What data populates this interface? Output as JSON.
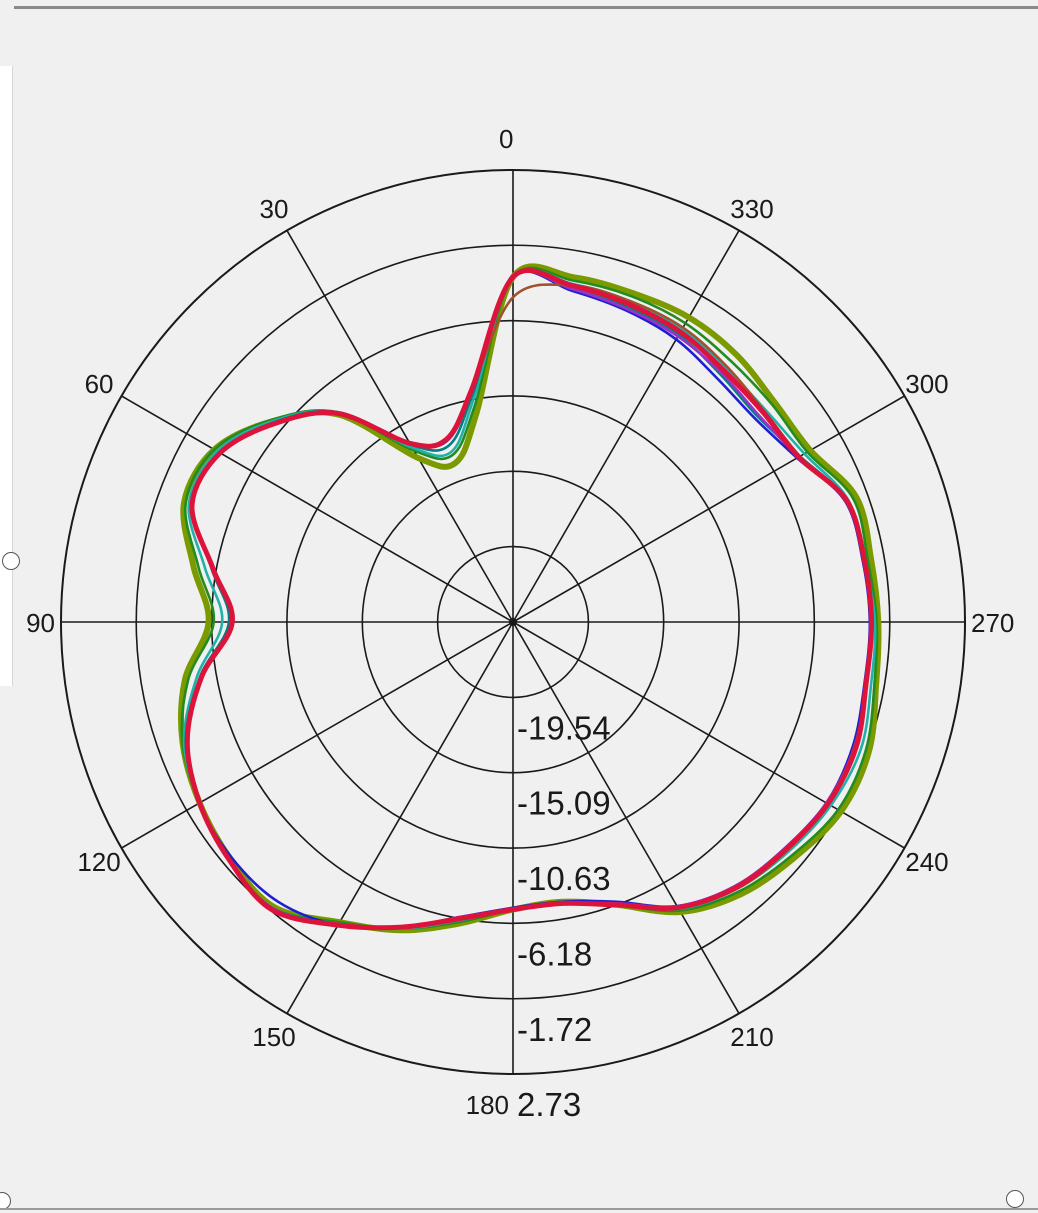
{
  "chart_data": {
    "type": "polar-line",
    "angle_labels": [
      "0",
      "30",
      "60",
      "90",
      "120",
      "150",
      "180",
      "210",
      "240",
      "270",
      "300",
      "330"
    ],
    "angle_direction": "counterclockwise",
    "zero_location": "top",
    "radial_ticks": [
      "-19.54",
      "-15.09",
      "-10.63",
      "-6.18",
      "-1.72",
      "2.73"
    ],
    "radial_range": [
      -24,
      2.73
    ],
    "grid": true,
    "angles": [
      0,
      10,
      20,
      30,
      40,
      50,
      60,
      70,
      80,
      90,
      100,
      110,
      120,
      130,
      140,
      150,
      160,
      170,
      180,
      190,
      200,
      210,
      220,
      230,
      240,
      250,
      260,
      270,
      280,
      290,
      300,
      310,
      320,
      330,
      340,
      350
    ],
    "series": [
      {
        "color": "#7a9a00",
        "values": [
          -3.6,
          -11.5,
          -14,
          -12.8,
          -8,
          -5.5,
          -3.6,
          -3.3,
          -4.8,
          -6.0,
          -4.3,
          -3.2,
          -2.6,
          -2.2,
          -2.0,
          -3.5,
          -4.6,
          -5.9,
          -7.0,
          -7.2,
          -6.2,
          -4.2,
          -3.0,
          -2.3,
          -1.6,
          -1.6,
          -2.2,
          -2.4,
          -2.5,
          -2.4,
          -3.7,
          -3.8,
          -3.4,
          -3.2,
          -3.3,
          -3.3
        ]
      },
      {
        "color": "#228b22",
        "values": [
          -3.6,
          -11,
          -13.5,
          -12.3,
          -7.8,
          -5.4,
          -3.6,
          -3.4,
          -5.1,
          -6.3,
          -4.5,
          -3.2,
          -2.6,
          -2.1,
          -1.9,
          -3.5,
          -4.7,
          -6.0,
          -7.0,
          -7.2,
          -6.2,
          -4.3,
          -3.2,
          -2.5,
          -1.8,
          -1.8,
          -2.3,
          -2.5,
          -2.7,
          -2.6,
          -3.9,
          -4.0,
          -3.9,
          -3.6,
          -3.5,
          -3.5
        ]
      },
      {
        "color": "#20b2aa",
        "values": [
          -3.6,
          -10.6,
          -13.3,
          -12.1,
          -7.8,
          -5.5,
          -3.8,
          -3.6,
          -5.5,
          -6.8,
          -5.0,
          -3.3,
          -2.6,
          -2.1,
          -1.9,
          -3.4,
          -4.7,
          -6.1,
          -7.0,
          -7.2,
          -6.2,
          -4.4,
          -3.4,
          -2.8,
          -2.3,
          -2.1,
          -2.5,
          -2.6,
          -2.9,
          -2.9,
          -4.1,
          -4.5,
          -4.4,
          -4.0,
          -3.8,
          -3.7
        ]
      },
      {
        "color": "#008080",
        "values": [
          -3.6,
          -10.3,
          -12.9,
          -11.9,
          -7.8,
          -5.6,
          -4.0,
          -3.8,
          -5.9,
          -7.2,
          -5.2,
          -3.4,
          -2.6,
          -2.1,
          -1.9,
          -3.4,
          -4.8,
          -6.2,
          -7.1,
          -7.2,
          -6.3,
          -4.5,
          -3.6,
          -3.0,
          -2.5,
          -2.4,
          -2.8,
          -2.8,
          -3.0,
          -3.0,
          -4.4,
          -5.1,
          -4.9,
          -4.4,
          -4.2,
          -4.0
        ]
      },
      {
        "color": "#1f1fd0",
        "values": [
          -3.6,
          -10.1,
          -12.6,
          -11.8,
          -7.9,
          -5.7,
          -4.0,
          -3.8,
          -6.0,
          -7.4,
          -5.3,
          -3.5,
          -2.6,
          -2.3,
          -2.4,
          -3.3,
          -4.8,
          -6.3,
          -7.1,
          -7.2,
          -6.4,
          -4.6,
          -3.6,
          -3.1,
          -2.6,
          -2.6,
          -2.9,
          -2.9,
          -3.0,
          -3.1,
          -4.6,
          -5.3,
          -5.2,
          -4.7,
          -4.4,
          -4.1
        ]
      },
      {
        "color": "#9932cc",
        "values": [
          -3.6,
          -10.0,
          -12.5,
          -11.8,
          -7.9,
          -5.7,
          -4.0,
          -3.8,
          -6.0,
          -7.4,
          -5.3,
          -3.5,
          -2.6,
          -2.1,
          -1.9,
          -3.3,
          -4.8,
          -6.3,
          -7.0,
          -7.1,
          -6.3,
          -4.6,
          -3.6,
          -3.1,
          -2.6,
          -2.5,
          -2.8,
          -2.8,
          -2.9,
          -3.0,
          -4.5,
          -5.0,
          -4.8,
          -4.5,
          -4.3,
          -4.0
        ]
      },
      {
        "color": "#a0522d",
        "values": [
          -4.8,
          -10.0,
          -12.5,
          -11.8,
          -7.9,
          -5.7,
          -4.0,
          -3.8,
          -6.0,
          -7.4,
          -5.3,
          -3.5,
          -2.6,
          -2.1,
          -1.8,
          -3.4,
          -4.8,
          -6.2,
          -7.0,
          -7.1,
          -6.2,
          -4.5,
          -3.4,
          -2.9,
          -2.5,
          -2.5,
          -2.8,
          -2.8,
          -2.9,
          -3.0,
          -4.4,
          -4.6,
          -4.3,
          -3.9,
          -3.8,
          -3.8
        ]
      },
      {
        "color": "#dc143c",
        "values": [
          -3.6,
          -10.0,
          -12.5,
          -11.8,
          -7.9,
          -5.7,
          -4.0,
          -3.8,
          -6.0,
          -7.4,
          -5.3,
          -3.5,
          -2.6,
          -2.1,
          -1.8,
          -3.3,
          -4.8,
          -6.2,
          -7.0,
          -7.1,
          -6.2,
          -4.5,
          -3.5,
          -3.0,
          -2.5,
          -2.4,
          -2.8,
          -2.8,
          -2.9,
          -3.0,
          -4.5,
          -4.7,
          -4.6,
          -4.2,
          -4.0,
          -3.8
        ]
      }
    ]
  }
}
